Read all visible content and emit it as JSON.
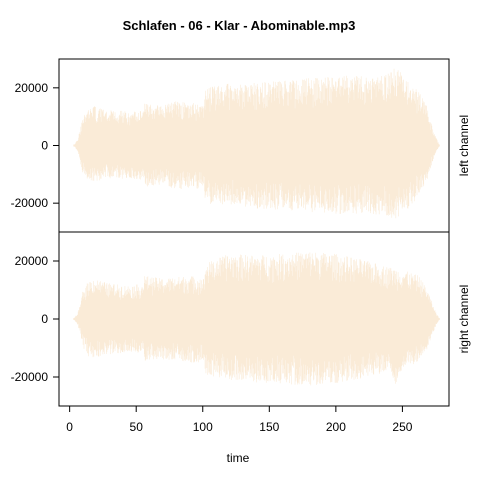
{
  "chart_data": {
    "type": "area",
    "title": "Schlafen - 06 - Klar - Abominable.mp3",
    "xlabel": "time",
    "x_ticks": [
      0,
      50,
      100,
      150,
      200,
      250
    ],
    "xlim": [
      -8,
      285
    ],
    "y_ticks": [
      -20000,
      0,
      20000
    ],
    "y_tick_labels": [
      "-20000",
      "0",
      "20000"
    ],
    "fill_color": "#FAEBD7",
    "panels": [
      {
        "name": "left channel",
        "ylim": [
          -30000,
          30000
        ],
        "envelope": {
          "t": [
            3,
            6,
            8,
            10,
            14,
            18,
            22,
            28,
            35,
            45,
            52,
            55,
            56,
            62,
            70,
            80,
            90,
            98,
            101,
            102,
            108,
            120,
            140,
            160,
            180,
            200,
            220,
            240,
            245,
            250,
            262,
            268,
            272,
            275,
            278
          ],
          "upper": [
            0,
            2000,
            6000,
            10000,
            12500,
            14000,
            13000,
            12000,
            12500,
            11500,
            12000,
            12000,
            15000,
            14500,
            14000,
            15500,
            15000,
            14500,
            14000,
            20000,
            21000,
            21500,
            22000,
            22500,
            23500,
            24000,
            24500,
            25000,
            28000,
            24500,
            19000,
            14000,
            8000,
            3000,
            0
          ],
          "lower": [
            0,
            -2000,
            -6000,
            -10000,
            -12000,
            -12500,
            -12500,
            -11500,
            -12000,
            -11500,
            -12000,
            -12000,
            -14500,
            -14000,
            -14000,
            -15000,
            -15500,
            -15000,
            -14500,
            -20000,
            -20500,
            -21000,
            -22000,
            -22500,
            -23000,
            -24000,
            -23500,
            -24500,
            -26000,
            -24000,
            -18000,
            -13000,
            -7000,
            -2500,
            0
          ]
        }
      },
      {
        "name": "right channel",
        "ylim": [
          -30000,
          30000
        ],
        "envelope": {
          "t": [
            3,
            6,
            8,
            10,
            14,
            18,
            22,
            28,
            35,
            45,
            52,
            55,
            56,
            62,
            70,
            80,
            90,
            98,
            101,
            102,
            108,
            120,
            140,
            160,
            180,
            200,
            220,
            240,
            245,
            250,
            262,
            268,
            272,
            275,
            278
          ],
          "upper": [
            0,
            2000,
            5000,
            10000,
            13000,
            14000,
            13500,
            12500,
            12000,
            11500,
            12000,
            12000,
            15000,
            14500,
            14000,
            14500,
            15000,
            14500,
            14000,
            19000,
            20500,
            22500,
            22000,
            22500,
            23500,
            22500,
            20500,
            18000,
            17500,
            17000,
            15000,
            11000,
            6000,
            2500,
            0
          ],
          "lower": [
            0,
            -2000,
            -5000,
            -10000,
            -13000,
            -13500,
            -13000,
            -12500,
            -12000,
            -11500,
            -12000,
            -12000,
            -14500,
            -14000,
            -14000,
            -14500,
            -15000,
            -15000,
            -14500,
            -19000,
            -20000,
            -21000,
            -22000,
            -22500,
            -23000,
            -22500,
            -21000,
            -18000,
            -23000,
            -17000,
            -15000,
            -11000,
            -6000,
            -2500,
            0
          ]
        }
      }
    ]
  }
}
